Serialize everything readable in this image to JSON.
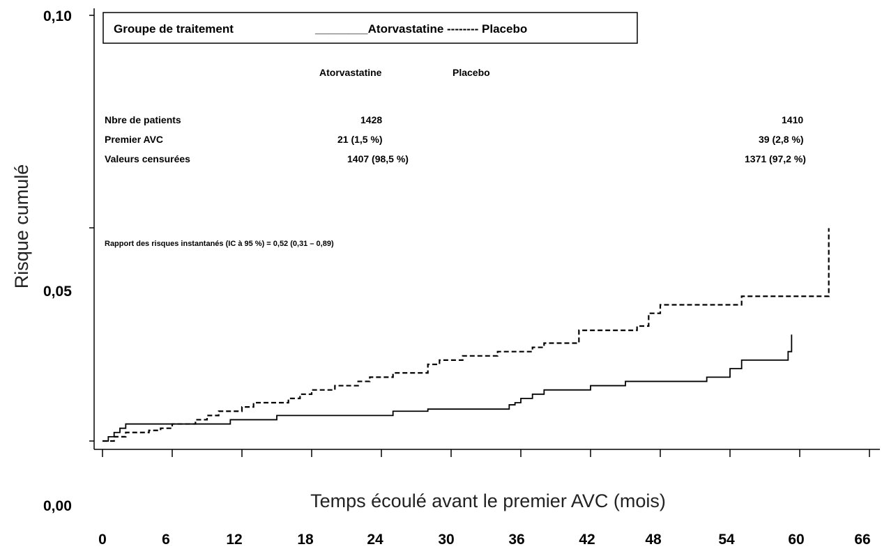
{
  "chart_data": {
    "type": "line",
    "ylabel": "Risque cumulé",
    "xlabel": "Temps écoulé avant le premier AVC (mois)",
    "x_ticks": [
      0,
      6,
      12,
      18,
      24,
      30,
      36,
      42,
      48,
      54,
      60,
      66
    ],
    "x_tick_labels": [
      "0",
      "6",
      "12",
      "18",
      "24",
      "30",
      "36",
      "42",
      "48",
      "54",
      "60",
      "66"
    ],
    "y_tick_labels": [
      "0,10",
      "0,05",
      "0,00"
    ],
    "xlim": [
      0,
      66
    ],
    "ylim": [
      0,
      0.1
    ],
    "grid": false,
    "legend": {
      "title": "Groupe de traitement",
      "text": "________Atorvastatine -------- Placebo"
    },
    "series": [
      {
        "name": "Atorvastatine",
        "line_style": "solid",
        "x": [
          0,
          0.5,
          1,
          1.5,
          2,
          6,
          11,
          12,
          15,
          21,
          25,
          28,
          35,
          35.5,
          36,
          37,
          38,
          42,
          45,
          52,
          54,
          55,
          59,
          59.3
        ],
        "y": [
          0.0,
          0.001,
          0.002,
          0.003,
          0.004,
          0.004,
          0.005,
          0.005,
          0.006,
          0.006,
          0.007,
          0.0075,
          0.0085,
          0.009,
          0.01,
          0.011,
          0.012,
          0.013,
          0.014,
          0.015,
          0.017,
          0.019,
          0.021,
          0.025
        ]
      },
      {
        "name": "Placebo",
        "line_style": "dashed",
        "x": [
          0,
          1,
          2,
          4,
          5,
          6,
          8,
          9,
          10,
          12,
          13,
          16,
          17,
          18,
          20,
          22,
          23,
          25,
          28,
          29,
          31,
          34,
          37,
          38,
          41,
          46,
          47,
          48,
          55,
          62,
          62.5
        ],
        "y": [
          0.0,
          0.001,
          0.002,
          0.0025,
          0.003,
          0.004,
          0.005,
          0.006,
          0.007,
          0.008,
          0.009,
          0.01,
          0.011,
          0.012,
          0.013,
          0.014,
          0.015,
          0.016,
          0.018,
          0.019,
          0.02,
          0.021,
          0.022,
          0.023,
          0.026,
          0.027,
          0.03,
          0.032,
          0.034,
          0.034,
          0.05
        ]
      }
    ],
    "table": {
      "headers": [
        "Atorvastatine",
        "Placebo"
      ],
      "rows": [
        {
          "label": "Nbre de patients",
          "atorvastatine": "1428",
          "placebo": "1410"
        },
        {
          "label": "Premier AVC",
          "atorvastatine": "21 (1,5 %)",
          "placebo": "39 (2,8 %)"
        },
        {
          "label": "Valeurs censurées",
          "atorvastatine": "1407 (98,5 %)",
          "placebo": "1371 (97,2 %)"
        }
      ]
    },
    "annotation": "Rapport des risques instantanés (IC à 95 %) = 0,52  (0,31 – 0,89)"
  }
}
